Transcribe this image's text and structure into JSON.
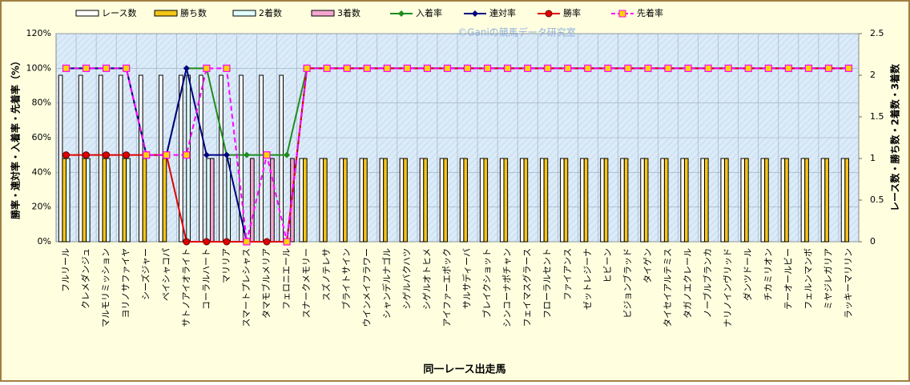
{
  "chart_data": {
    "type": "bar-line",
    "watermark": "©Ganiの競馬データ研究室",
    "ylabel": "勝率・連対率・入着率・先着率（%）",
    "y2label": "レース数・勝ち数・2着数・3着数",
    "xlabel": "同一レース出走馬",
    "grid": true,
    "categories": [
      "フルリール",
      "クレメダンジュ",
      "マルモリミッション",
      "ヨリノサファイヤ",
      "シーズジャー",
      "ペイシャコパ",
      "サトノアイオライト",
      "コーラルハート",
      "マリリア",
      "スマートプレシャス",
      "タマモブルメリア",
      "フェロニエール",
      "スナークメモリー",
      "スズノテレサ",
      "ブライトサイン",
      "ウインメイフラワー",
      "シャンデルナゴル",
      "シゲルバクハツ",
      "シゲルオトヒメ",
      "アイファーエポック",
      "サルサディーバ",
      "ブレイクショット",
      "シンコーナポチャン",
      "フェイマスグラース",
      "フローラルセント",
      "ファイアンス",
      "ゼットレジーナ",
      "ヒビーン",
      "ビジョンブラッド",
      "タイゲン",
      "タイセイアルテミス",
      "タガノエクレール",
      "ノーブルブランカ",
      "ナリノインヴリッド",
      "ダンツドール",
      "チカミリオン",
      "テーオールビー",
      "フェルンマンボ",
      "ミヤジレガリア",
      "ラッキーマリリン"
    ],
    "ylim": [
      0,
      120
    ],
    "yticks": [
      {
        "value": 0,
        "label": "0%"
      },
      {
        "value": 20,
        "label": "20%"
      },
      {
        "value": 40,
        "label": "40%"
      },
      {
        "value": 60,
        "label": "60%"
      },
      {
        "value": 80,
        "label": "80%"
      },
      {
        "value": 100,
        "label": "100%"
      },
      {
        "value": 120,
        "label": "120%"
      }
    ],
    "y2lim": [
      0,
      2.5
    ],
    "y2ticks": [
      0,
      0.5,
      1,
      1.5,
      2,
      2.5
    ],
    "series": [
      {
        "name": "レース数",
        "type": "bar",
        "axis": "y2",
        "color": "#ffffff",
        "stroke": "#000000",
        "values": [
          2,
          2,
          2,
          2,
          2,
          2,
          2,
          2,
          2,
          2,
          2,
          2,
          1,
          1,
          1,
          1,
          1,
          1,
          1,
          1,
          1,
          1,
          1,
          1,
          1,
          1,
          1,
          1,
          1,
          1,
          1,
          1,
          1,
          1,
          1,
          1,
          1,
          1,
          1,
          1
        ]
      },
      {
        "name": "勝ち数",
        "type": "bar",
        "axis": "y2",
        "color": "#f5c518",
        "stroke": "#000000",
        "values": [
          1,
          1,
          1,
          1,
          1,
          1,
          0,
          0,
          0,
          0,
          0,
          0,
          1,
          1,
          1,
          1,
          1,
          1,
          1,
          1,
          1,
          1,
          1,
          1,
          1,
          1,
          1,
          1,
          1,
          1,
          1,
          1,
          1,
          1,
          1,
          1,
          1,
          1,
          1,
          1
        ]
      },
      {
        "name": "2着数",
        "type": "bar",
        "axis": "y2",
        "color": "#e0ffff",
        "stroke": "#000000",
        "values": [
          1,
          1,
          1,
          1,
          0,
          0,
          2,
          1,
          1,
          0,
          0,
          0,
          0,
          0,
          0,
          0,
          0,
          0,
          0,
          0,
          0,
          0,
          0,
          0,
          0,
          0,
          0,
          0,
          0,
          0,
          0,
          0,
          0,
          0,
          0,
          0,
          0,
          0,
          0,
          0
        ]
      },
      {
        "name": "3着数",
        "type": "bar",
        "axis": "y2",
        "color": "#f4a6d0",
        "stroke": "#000000",
        "values": [
          0,
          0,
          0,
          0,
          0,
          0,
          0,
          1,
          0,
          1,
          1,
          1,
          0,
          0,
          0,
          0,
          0,
          0,
          0,
          0,
          0,
          0,
          0,
          0,
          0,
          0,
          0,
          0,
          0,
          0,
          0,
          0,
          0,
          0,
          0,
          0,
          0,
          0,
          0,
          0
        ]
      },
      {
        "name": "入着率",
        "type": "line",
        "color": "#1e8c1e",
        "marker": "diamond",
        "values": [
          100,
          100,
          100,
          100,
          50,
          50,
          100,
          100,
          50,
          50,
          50,
          50,
          100,
          100,
          100,
          100,
          100,
          100,
          100,
          100,
          100,
          100,
          100,
          100,
          100,
          100,
          100,
          100,
          100,
          100,
          100,
          100,
          100,
          100,
          100,
          100,
          100,
          100,
          100,
          100
        ]
      },
      {
        "name": "連対率",
        "type": "line",
        "color": "#000080",
        "marker": "diamond",
        "values": [
          100,
          100,
          100,
          100,
          50,
          50,
          100,
          50,
          50,
          0,
          0,
          0,
          100,
          100,
          100,
          100,
          100,
          100,
          100,
          100,
          100,
          100,
          100,
          100,
          100,
          100,
          100,
          100,
          100,
          100,
          100,
          100,
          100,
          100,
          100,
          100,
          100,
          100,
          100,
          100
        ]
      },
      {
        "name": "勝率",
        "type": "line",
        "color": "#e00000",
        "marker": "circle",
        "values": [
          50,
          50,
          50,
          50,
          50,
          50,
          0,
          0,
          0,
          0,
          0,
          0,
          100,
          100,
          100,
          100,
          100,
          100,
          100,
          100,
          100,
          100,
          100,
          100,
          100,
          100,
          100,
          100,
          100,
          100,
          100,
          100,
          100,
          100,
          100,
          100,
          100,
          100,
          100,
          100
        ]
      },
      {
        "name": "先着率",
        "type": "line",
        "color": "#ff00ff",
        "marker": "square",
        "dashed": true,
        "values": [
          100,
          100,
          100,
          100,
          50,
          50,
          50,
          100,
          100,
          0,
          50,
          0,
          100,
          100,
          100,
          100,
          100,
          100,
          100,
          100,
          100,
          100,
          100,
          100,
          100,
          100,
          100,
          100,
          100,
          100,
          100,
          100,
          100,
          100,
          100,
          100,
          100,
          100,
          100,
          100
        ]
      }
    ]
  }
}
